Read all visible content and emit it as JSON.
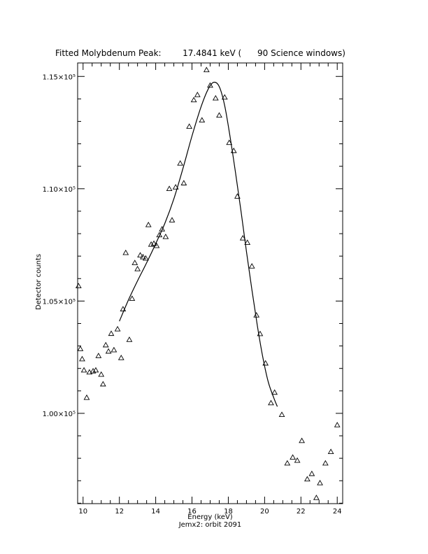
{
  "chart_data": {
    "type": "scatter",
    "title": "Fitted Molybdenum Peak:        17.4841 keV (      90 Science windows)",
    "xlabel": "Energy (keV)",
    "ylabel": "Detector counts",
    "subtitle": "Jemx2: orbit 2091",
    "xlim": [
      9.7,
      24.3
    ],
    "ylim": [
      95980,
      115600
    ],
    "x_ticks": [
      10,
      12,
      14,
      16,
      18,
      20,
      22,
      24
    ],
    "x_tick_labels": [
      "10",
      "12",
      "14",
      "16",
      "18",
      "20",
      "22",
      "24"
    ],
    "y_ticks": [
      100000,
      105000,
      110000,
      115000
    ],
    "y_tick_labels": [
      "1.00×10⁵",
      "1.05×10⁵",
      "1.10×10⁵",
      "1.15×10⁵"
    ],
    "grid": false,
    "marker": "open-triangle",
    "series": [
      {
        "points": [
          [
            9.75,
            105670
          ],
          [
            9.85,
            102870
          ],
          [
            9.95,
            102420
          ],
          [
            10.05,
            101920
          ],
          [
            10.2,
            100700
          ],
          [
            10.35,
            101830
          ],
          [
            10.55,
            101880
          ],
          [
            10.7,
            101920
          ],
          [
            10.85,
            102560
          ],
          [
            11.0,
            101730
          ],
          [
            11.1,
            101300
          ],
          [
            11.25,
            103040
          ],
          [
            11.4,
            102760
          ],
          [
            11.55,
            103550
          ],
          [
            11.7,
            102820
          ],
          [
            11.9,
            103750
          ],
          [
            12.1,
            102470
          ],
          [
            12.2,
            104640
          ],
          [
            12.35,
            107150
          ],
          [
            12.55,
            103280
          ],
          [
            12.7,
            105110
          ],
          [
            12.85,
            106700
          ],
          [
            13.0,
            106430
          ],
          [
            13.15,
            107040
          ],
          [
            13.3,
            106960
          ],
          [
            13.45,
            106900
          ],
          [
            13.6,
            108390
          ],
          [
            13.75,
            107520
          ],
          [
            13.9,
            107560
          ],
          [
            14.05,
            107460
          ],
          [
            14.2,
            107940
          ],
          [
            14.35,
            108200
          ],
          [
            14.55,
            107860
          ],
          [
            14.75,
            110000
          ],
          [
            14.9,
            108600
          ],
          [
            15.1,
            110070
          ],
          [
            15.35,
            111130
          ],
          [
            15.55,
            110250
          ],
          [
            15.85,
            112770
          ],
          [
            16.1,
            113950
          ],
          [
            16.3,
            114180
          ],
          [
            16.55,
            113050
          ],
          [
            16.8,
            115290
          ],
          [
            17.0,
            114600
          ],
          [
            17.3,
            114030
          ],
          [
            17.5,
            113270
          ],
          [
            17.8,
            114070
          ],
          [
            18.05,
            112050
          ],
          [
            18.3,
            111690
          ],
          [
            18.5,
            109660
          ],
          [
            18.8,
            107800
          ],
          [
            19.05,
            107600
          ],
          [
            19.3,
            106550
          ],
          [
            19.55,
            104370
          ],
          [
            19.75,
            103540
          ],
          [
            20.05,
            102230
          ],
          [
            20.35,
            100460
          ],
          [
            20.55,
            100930
          ],
          [
            20.95,
            99940
          ],
          [
            21.25,
            97780
          ],
          [
            21.55,
            98040
          ],
          [
            21.8,
            97900
          ],
          [
            22.05,
            98780
          ],
          [
            22.35,
            97070
          ],
          [
            22.6,
            97310
          ],
          [
            22.85,
            96240
          ],
          [
            23.05,
            96900
          ],
          [
            23.35,
            97780
          ],
          [
            23.65,
            98290
          ],
          [
            24.0,
            99480
          ]
        ]
      }
    ],
    "fit_curve": [
      [
        12.0,
        104100
      ],
      [
        12.5,
        105050
      ],
      [
        13.0,
        105900
      ],
      [
        13.5,
        106700
      ],
      [
        14.0,
        107550
      ],
      [
        14.5,
        108450
      ],
      [
        15.0,
        109550
      ],
      [
        15.5,
        110900
      ],
      [
        16.0,
        112350
      ],
      [
        16.5,
        113650
      ],
      [
        16.9,
        114450
      ],
      [
        17.2,
        114740
      ],
      [
        17.5,
        114550
      ],
      [
        17.8,
        113700
      ],
      [
        18.1,
        112300
      ],
      [
        18.4,
        110700
      ],
      [
        18.7,
        109000
      ],
      [
        19.0,
        107200
      ],
      [
        19.3,
        105500
      ],
      [
        19.6,
        103900
      ],
      [
        19.9,
        102500
      ],
      [
        20.2,
        101400
      ],
      [
        20.5,
        100700
      ],
      [
        20.7,
        100300
      ]
    ]
  }
}
